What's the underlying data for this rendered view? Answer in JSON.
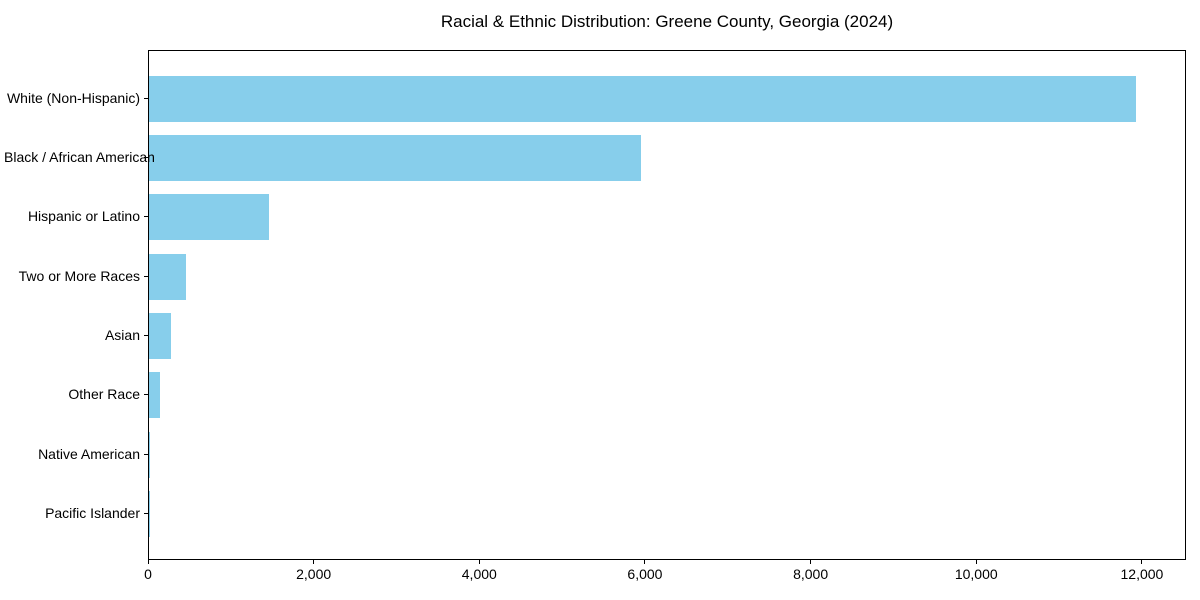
{
  "title": "Racial & Ethnic Distribution: Greene County, Georgia (2024)",
  "colors": {
    "bar": "#87CEEB",
    "axis": "#000000",
    "text": "#000000",
    "background": "#FFFFFF"
  },
  "chart_data": {
    "type": "bar",
    "orientation": "horizontal",
    "title": "Racial & Ethnic Distribution: Greene County, Georgia (2024)",
    "xlabel": "",
    "ylabel": "",
    "categories": [
      "White (Non-Hispanic)",
      "Black / African American",
      "Hispanic or Latino",
      "Two or More Races",
      "Asian",
      "Other Race",
      "Native American",
      "Pacific Islander"
    ],
    "values": [
      11920,
      5940,
      1450,
      445,
      265,
      135,
      10,
      5
    ],
    "xlim": [
      0,
      12520
    ],
    "x_ticks": [
      0,
      2000,
      4000,
      6000,
      8000,
      10000,
      12000
    ],
    "x_tick_labels": [
      "0",
      "2,000",
      "4,000",
      "6,000",
      "8,000",
      "10,000",
      "12,000"
    ],
    "grid": false,
    "legend": null,
    "bar_color": "#87CEEB"
  }
}
